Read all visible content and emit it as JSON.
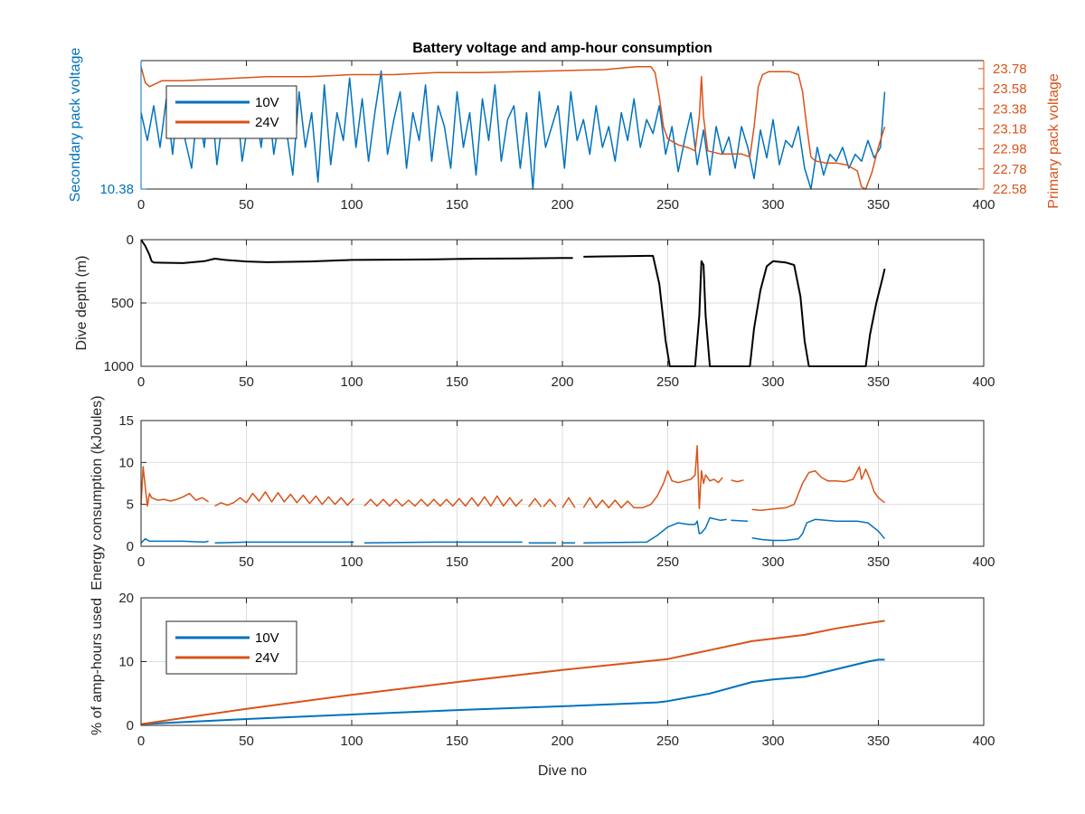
{
  "colors": {
    "v10": "#0072BD",
    "v24": "#D95319",
    "depth": "#000000",
    "axis": "#262626",
    "grid": "#dedede"
  },
  "chart_data": [
    {
      "type": "line",
      "title": "Battery voltage and amp-hour consumption",
      "xlabel": "",
      "ylabel": "Secondary pack voltage",
      "ylabel_right": "Primary pack voltage",
      "xlim": [
        0,
        400
      ],
      "xticks": [
        0,
        50,
        100,
        150,
        200,
        250,
        300,
        350,
        400
      ],
      "ylim_left": [
        10.38,
        10.75
      ],
      "yticks_left": [
        10.38
      ],
      "ylim_right": [
        22.58,
        23.86
      ],
      "yticks_right": [
        22.58,
        22.78,
        22.98,
        23.18,
        23.38,
        23.58,
        23.78
      ],
      "grid": false,
      "legend": {
        "location": "top-left",
        "entries": [
          "10V",
          "24V"
        ]
      },
      "series": [
        {
          "name": "10V",
          "axis": "left",
          "x": [
            0,
            3,
            6,
            9,
            12,
            15,
            18,
            21,
            24,
            27,
            30,
            33,
            36,
            39,
            42,
            45,
            48,
            51,
            54,
            57,
            60,
            63,
            66,
            69,
            72,
            75,
            78,
            81,
            84,
            87,
            90,
            93,
            96,
            99,
            102,
            105,
            108,
            111,
            114,
            117,
            120,
            123,
            126,
            129,
            132,
            135,
            138,
            141,
            144,
            147,
            150,
            153,
            156,
            159,
            162,
            165,
            168,
            171,
            174,
            177,
            180,
            183,
            186,
            189,
            192,
            195,
            198,
            201,
            204,
            207,
            210,
            213,
            216,
            219,
            222,
            225,
            228,
            231,
            234,
            237,
            240,
            243,
            246,
            249,
            252,
            255,
            258,
            261,
            264,
            267,
            270,
            273,
            276,
            279,
            282,
            285,
            288,
            291,
            294,
            297,
            300,
            303,
            306,
            309,
            312,
            315,
            318,
            321,
            324,
            327,
            330,
            333,
            336,
            339,
            342,
            345,
            348,
            351,
            353
          ],
          "values": [
            10.6,
            10.52,
            10.62,
            10.5,
            10.64,
            10.48,
            10.66,
            10.52,
            10.44,
            10.62,
            10.5,
            10.67,
            10.45,
            10.6,
            10.54,
            10.66,
            10.46,
            10.58,
            10.63,
            10.5,
            10.66,
            10.48,
            10.6,
            10.55,
            10.42,
            10.66,
            10.5,
            10.6,
            10.4,
            10.68,
            10.45,
            10.6,
            10.52,
            10.7,
            10.5,
            10.64,
            10.46,
            10.6,
            10.72,
            10.48,
            10.58,
            10.66,
            10.44,
            10.6,
            10.52,
            10.68,
            10.46,
            10.62,
            10.56,
            10.44,
            10.66,
            10.5,
            10.6,
            10.42,
            10.64,
            10.52,
            10.68,
            10.46,
            10.58,
            10.62,
            10.44,
            10.6,
            10.38,
            10.66,
            10.5,
            10.56,
            10.62,
            10.44,
            10.66,
            10.52,
            10.58,
            10.48,
            10.62,
            10.5,
            10.56,
            10.46,
            10.6,
            10.52,
            10.64,
            10.5,
            10.58,
            10.54,
            10.62,
            10.48,
            10.56,
            10.43,
            10.52,
            10.6,
            10.45,
            10.55,
            10.42,
            10.56,
            10.48,
            10.53,
            10.44,
            10.56,
            10.5,
            10.41,
            10.55,
            10.47,
            10.58,
            10.45,
            10.52,
            10.5,
            10.56,
            10.44,
            10.38,
            10.5,
            10.42,
            10.48,
            10.46,
            10.5,
            10.44,
            10.48,
            10.46,
            10.52,
            10.47,
            10.5,
            10.66
          ]
        },
        {
          "name": "24V",
          "axis": "right",
          "x": [
            0,
            2,
            4,
            6,
            10,
            20,
            40,
            60,
            80,
            100,
            120,
            140,
            160,
            180,
            200,
            220,
            235,
            242,
            244,
            246,
            248,
            250,
            255,
            260,
            263,
            265,
            266,
            267,
            269,
            275,
            285,
            289,
            291,
            293,
            295,
            298,
            302,
            308,
            312,
            314,
            316,
            318,
            320,
            325,
            330,
            335,
            340,
            342,
            344,
            347,
            350,
            353
          ],
          "values": [
            23.8,
            23.64,
            23.6,
            23.62,
            23.66,
            23.66,
            23.68,
            23.7,
            23.7,
            23.72,
            23.72,
            23.74,
            23.74,
            23.75,
            23.76,
            23.77,
            23.8,
            23.8,
            23.74,
            23.5,
            23.2,
            23.08,
            23.02,
            22.99,
            22.96,
            23.3,
            23.7,
            23.3,
            22.96,
            22.93,
            22.93,
            22.9,
            23.2,
            23.6,
            23.72,
            23.75,
            23.75,
            23.75,
            23.72,
            23.55,
            23.2,
            22.9,
            22.86,
            22.84,
            22.84,
            22.82,
            22.76,
            22.6,
            22.58,
            22.75,
            23.0,
            23.2
          ]
        }
      ]
    },
    {
      "type": "line",
      "title": "",
      "xlabel": "",
      "ylabel": "Dive depth (m)",
      "xlim": [
        0,
        400
      ],
      "xticks": [
        0,
        50,
        100,
        150,
        200,
        250,
        300,
        350,
        400
      ],
      "ylim": [
        0,
        1000
      ],
      "y_reversed": true,
      "yticks": [
        0,
        500,
        1000
      ],
      "grid": true,
      "series": [
        {
          "x": [
            0,
            2,
            4,
            5,
            6,
            10,
            20,
            30,
            35,
            40,
            50,
            60,
            70,
            80,
            100,
            120,
            140,
            160,
            180,
            200,
            205,
            207,
            210,
            220,
            230,
            240,
            243,
            246,
            249,
            251,
            255,
            260,
            263,
            265,
            266,
            267,
            268,
            270,
            280,
            289,
            291,
            294,
            297,
            300,
            303,
            306,
            310,
            313,
            315,
            317,
            320,
            330,
            340,
            344,
            346,
            349,
            352,
            353
          ],
          "values": [
            0,
            50,
            120,
            170,
            180,
            182,
            185,
            170,
            150,
            160,
            172,
            178,
            175,
            172,
            160,
            158,
            155,
            150,
            148,
            145,
            145,
            null,
            135,
            132,
            130,
            128,
            128,
            350,
            800,
            1000,
            1000,
            1000,
            1000,
            600,
            170,
            200,
            600,
            1000,
            1000,
            1000,
            700,
            400,
            210,
            170,
            175,
            180,
            200,
            450,
            800,
            1000,
            1000,
            1000,
            1000,
            1000,
            750,
            500,
            300,
            230
          ]
        }
      ]
    },
    {
      "type": "line",
      "title": "",
      "xlabel": "",
      "ylabel": "Energy consumption (kJoules)",
      "xlim": [
        0,
        400
      ],
      "xticks": [
        0,
        50,
        100,
        150,
        200,
        250,
        300,
        350,
        400
      ],
      "ylim": [
        0,
        15
      ],
      "yticks": [
        0,
        5,
        10,
        15
      ],
      "grid": true,
      "series": [
        {
          "name": "24V",
          "x": [
            0,
            1,
            2,
            3,
            4,
            5,
            8,
            11,
            14,
            17,
            20,
            23,
            26,
            29,
            32,
            null,
            35,
            38,
            41,
            44,
            47,
            50,
            53,
            56,
            59,
            62,
            65,
            68,
            71,
            74,
            77,
            80,
            83,
            86,
            89,
            92,
            95,
            98,
            101,
            null,
            106,
            109,
            112,
            115,
            118,
            121,
            124,
            127,
            130,
            133,
            136,
            139,
            142,
            145,
            148,
            151,
            154,
            157,
            160,
            163,
            166,
            169,
            172,
            175,
            178,
            181,
            null,
            184,
            187,
            190,
            null,
            191,
            194,
            197,
            null,
            200,
            203,
            206,
            null,
            210,
            213,
            216,
            219,
            222,
            225,
            228,
            231,
            234,
            238,
            242,
            245,
            248,
            250,
            252,
            255,
            258,
            261,
            263,
            264,
            265,
            266,
            267,
            268,
            270,
            272,
            274,
            276,
            278,
            null,
            280,
            283,
            286,
            288,
            null,
            290,
            294,
            298,
            302,
            306,
            310,
            314,
            317,
            320,
            323,
            326,
            330,
            334,
            338,
            341,
            342,
            344,
            346,
            348,
            350,
            353
          ],
          "values": [
            5,
            9.5,
            7,
            4.8,
            6.3,
            5.8,
            5.5,
            5.6,
            5.4,
            5.6,
            5.9,
            6.3,
            5.5,
            5.8,
            5.3,
            null,
            4.8,
            5.2,
            4.9,
            5.2,
            5.8,
            5.2,
            6.3,
            5.4,
            6.5,
            5.3,
            6.4,
            5.3,
            6.2,
            5.2,
            6.1,
            5.1,
            6.0,
            5.0,
            5.9,
            5.0,
            5.8,
            4.9,
            5.7,
            null,
            4.8,
            5.6,
            4.8,
            5.6,
            4.8,
            5.6,
            4.8,
            5.5,
            4.8,
            5.6,
            4.8,
            5.6,
            4.8,
            5.6,
            4.8,
            5.7,
            4.8,
            5.8,
            4.8,
            5.9,
            4.8,
            6.0,
            4.8,
            5.8,
            4.8,
            5.6,
            null,
            4.7,
            5.7,
            4.7,
            null,
            4.7,
            5.6,
            4.7,
            null,
            4.6,
            5.8,
            4.6,
            null,
            4.6,
            5.8,
            4.6,
            5.5,
            4.6,
            5.5,
            4.6,
            5.4,
            4.6,
            4.6,
            5.0,
            6.0,
            7.5,
            9.0,
            7.8,
            7.6,
            7.8,
            8.0,
            8.5,
            12.0,
            4.5,
            9.0,
            7.5,
            8.5,
            7.8,
            8.0,
            7.6,
            8.2,
            null,
            7.8,
            7.9,
            7.7,
            7.9,
            null,
            5.0,
            4.4,
            4.3,
            4.4,
            4.5,
            4.6,
            5.0,
            7.5,
            8.8,
            9.0,
            8.2,
            7.8,
            7.8,
            7.7,
            8.0,
            9.5,
            8.0,
            9.2,
            8.0,
            6.5,
            5.8,
            5.2
          ]
        },
        {
          "name": "10V",
          "x": [
            0,
            2,
            4,
            6,
            10,
            20,
            30,
            32,
            null,
            35,
            50,
            80,
            101,
            null,
            106,
            140,
            181,
            null,
            184,
            197,
            null,
            200,
            206,
            null,
            210,
            240,
            245,
            250,
            255,
            260,
            263,
            264,
            265,
            266,
            268,
            270,
            275,
            278,
            null,
            280,
            288,
            null,
            290,
            295,
            300,
            306,
            312,
            314,
            316,
            320,
            330,
            340,
            345,
            350,
            353
          ],
          "values": [
            0.4,
            0.9,
            0.6,
            0.6,
            0.6,
            0.6,
            0.5,
            0.6,
            null,
            0.4,
            0.5,
            0.5,
            0.5,
            null,
            0.4,
            0.5,
            0.5,
            null,
            0.4,
            0.4,
            null,
            0.4,
            0.4,
            null,
            0.4,
            0.5,
            1.3,
            2.3,
            2.8,
            2.6,
            2.6,
            3.0,
            1.5,
            1.6,
            2.2,
            3.4,
            3.1,
            3.2,
            null,
            3.1,
            3.0,
            null,
            1.0,
            0.8,
            0.7,
            0.7,
            0.9,
            1.5,
            2.8,
            3.2,
            3.0,
            3.0,
            2.8,
            1.8,
            0.9
          ]
        }
      ]
    },
    {
      "type": "line",
      "title": "",
      "xlabel": "Dive no",
      "ylabel": "% of amp-hours used",
      "xlim": [
        0,
        400
      ],
      "xticks": [
        0,
        50,
        100,
        150,
        200,
        250,
        300,
        350,
        400
      ],
      "ylim": [
        0,
        20
      ],
      "yticks": [
        0,
        10,
        20
      ],
      "grid": true,
      "legend": {
        "location": "top-left",
        "entries": [
          "10V",
          "24V"
        ]
      },
      "series": [
        {
          "name": "10V",
          "x": [
            0,
            50,
            100,
            150,
            200,
            245,
            250,
            270,
            290,
            300,
            315,
            330,
            345,
            350,
            353
          ],
          "values": [
            0.2,
            1.0,
            1.7,
            2.4,
            3.0,
            3.6,
            3.8,
            5.0,
            6.8,
            7.2,
            7.6,
            8.8,
            10.0,
            10.3,
            10.3
          ]
        },
        {
          "name": "24V",
          "x": [
            0,
            50,
            100,
            150,
            200,
            250,
            270,
            290,
            300,
            315,
            330,
            345,
            353
          ],
          "values": [
            0.2,
            2.6,
            4.8,
            6.8,
            8.7,
            10.4,
            11.8,
            13.2,
            13.6,
            14.2,
            15.2,
            16.0,
            16.4
          ]
        }
      ]
    }
  ]
}
